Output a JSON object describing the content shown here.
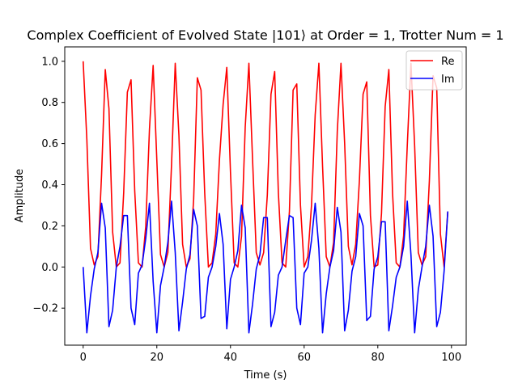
{
  "chart_data": {
    "type": "line",
    "title": "Complex Coefficient of Evolved State |101⟩ at Order = 1, Trotter Num = 1",
    "xlabel": "Time (s)",
    "ylabel": "Amplitude",
    "xlim": [
      -5,
      104
    ],
    "ylim": [
      -0.38,
      1.07
    ],
    "xticks": [
      0,
      20,
      40,
      60,
      80,
      100
    ],
    "yticks": [
      -0.2,
      0.0,
      0.2,
      0.4,
      0.6,
      0.8,
      1.0
    ],
    "ytick_labels": [
      "−0.2",
      "0.0",
      "0.2",
      "0.4",
      "0.6",
      "0.8",
      "1.0"
    ],
    "grid": false,
    "legend_position": "top-right",
    "x": [
      0,
      1,
      2,
      3,
      4,
      5,
      6,
      7,
      8,
      9,
      10,
      11,
      12,
      13,
      14,
      15,
      16,
      17,
      18,
      19,
      20,
      21,
      22,
      23,
      24,
      25,
      26,
      27,
      28,
      29,
      30,
      31,
      32,
      33,
      34,
      35,
      36,
      37,
      38,
      39,
      40,
      41,
      42,
      43,
      44,
      45,
      46,
      47,
      48,
      49,
      50,
      51,
      52,
      53,
      54,
      55,
      56,
      57,
      58,
      59,
      60,
      61,
      62,
      63,
      64,
      65,
      66,
      67,
      68,
      69,
      70,
      71,
      72,
      73,
      74,
      75,
      76,
      77,
      78,
      79,
      80,
      81,
      82,
      83,
      84,
      85,
      86,
      87,
      88,
      89,
      90,
      91,
      92,
      93,
      94,
      95,
      96,
      97,
      98,
      99
    ],
    "series": [
      {
        "name": "Re",
        "color": "#ff0000",
        "values": [
          1.0,
          0.62,
          0.09,
          0.01,
          0.05,
          0.45,
          0.96,
          0.77,
          0.17,
          0.0,
          0.02,
          0.36,
          0.85,
          0.91,
          0.37,
          0.02,
          0.0,
          0.2,
          0.67,
          0.98,
          0.52,
          0.06,
          0.0,
          0.07,
          0.5,
          0.99,
          0.64,
          0.11,
          0.0,
          0.04,
          0.33,
          0.92,
          0.86,
          0.36,
          0.0,
          0.02,
          0.16,
          0.52,
          0.79,
          0.97,
          0.46,
          0.02,
          0.0,
          0.15,
          0.68,
          0.99,
          0.52,
          0.07,
          0.01,
          0.07,
          0.35,
          0.84,
          0.95,
          0.36,
          0.02,
          0.0,
          0.27,
          0.86,
          0.89,
          0.3,
          0.0,
          0.05,
          0.3,
          0.74,
          0.99,
          0.49,
          0.05,
          0.0,
          0.12,
          0.66,
          0.99,
          0.6,
          0.1,
          0.01,
          0.11,
          0.42,
          0.84,
          0.9,
          0.25,
          0.0,
          0.01,
          0.26,
          0.78,
          0.96,
          0.36,
          0.02,
          0.0,
          0.15,
          0.59,
          0.99,
          0.59,
          0.07,
          0.01,
          0.05,
          0.42,
          0.93,
          0.87,
          0.16,
          0.0,
          0.27
        ]
      },
      {
        "name": "Im",
        "color": "#0000ff",
        "values": [
          0.0,
          -0.32,
          -0.14,
          -0.01,
          0.07,
          0.31,
          0.19,
          -0.29,
          -0.21,
          0.0,
          0.1,
          0.25,
          0.25,
          -0.2,
          -0.28,
          -0.03,
          0.01,
          0.14,
          0.31,
          -0.07,
          -0.32,
          -0.09,
          0.0,
          0.12,
          0.32,
          0.07,
          -0.31,
          -0.17,
          -0.01,
          0.06,
          0.28,
          0.2,
          -0.25,
          -0.24,
          -0.05,
          0.0,
          0.1,
          0.26,
          0.11,
          -0.3,
          -0.06,
          0.0,
          0.08,
          0.3,
          0.19,
          -0.32,
          -0.18,
          -0.01,
          0.06,
          0.24,
          0.24,
          -0.29,
          -0.22,
          -0.04,
          0.0,
          0.13,
          0.25,
          0.24,
          -0.2,
          -0.28,
          -0.03,
          0.0,
          0.13,
          0.31,
          0.09,
          -0.32,
          -0.13,
          0.0,
          0.08,
          0.29,
          0.17,
          -0.31,
          -0.21,
          -0.02,
          0.05,
          0.26,
          0.2,
          -0.26,
          -0.24,
          -0.01,
          0.05,
          0.22,
          0.22,
          -0.31,
          -0.19,
          -0.05,
          0.0,
          0.1,
          0.32,
          0.06,
          -0.32,
          -0.11,
          0.0,
          0.1,
          0.3,
          0.15,
          -0.29,
          -0.22,
          -0.02,
          0.27
        ]
      }
    ]
  }
}
